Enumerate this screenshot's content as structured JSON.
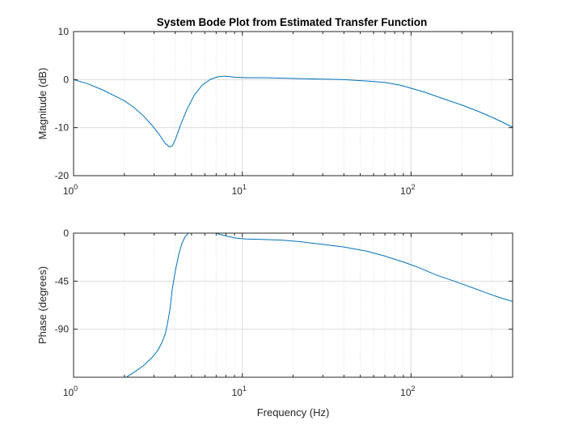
{
  "chart_data": [
    {
      "type": "line",
      "title": "System Bode Plot from Estimated Transfer Function",
      "xlabel": "",
      "ylabel": "Magnitude (dB)",
      "xscale": "log",
      "xlim": [
        1,
        400
      ],
      "ylim": [
        -20,
        10
      ],
      "yticks": [
        10,
        0,
        -10,
        -20
      ],
      "ytick_labels": [
        "10",
        "0",
        "-10",
        "-20"
      ],
      "xtick_labels": [
        {
          "base": "10",
          "exp": "0"
        },
        {
          "base": "10",
          "exp": "1"
        },
        {
          "base": "10",
          "exp": "2"
        }
      ],
      "grid": true,
      "color": "#0072BD",
      "x": [
        1,
        1.2,
        1.5,
        1.8,
        2,
        2.3,
        2.6,
        2.9,
        3.2,
        3.5,
        3.7,
        3.85,
        4,
        4.3,
        4.7,
        5.2,
        5.8,
        6.5,
        7.2,
        7.9,
        9,
        10.5,
        13,
        17,
        22,
        30,
        40,
        55,
        70,
        85,
        100,
        120,
        150,
        200,
        250,
        300,
        350,
        400
      ],
      "y": [
        0,
        -0.8,
        -2.2,
        -3.6,
        -4.4,
        -5.9,
        -7.6,
        -9.4,
        -11.3,
        -13.3,
        -14,
        -13.8,
        -12.6,
        -9.5,
        -6.2,
        -3.2,
        -1.1,
        0.1,
        0.6,
        0.7,
        0.5,
        0.4,
        0.4,
        0.3,
        0.2,
        0.1,
        0,
        -0.3,
        -0.6,
        -1.1,
        -1.8,
        -2.6,
        -3.8,
        -5.3,
        -6.6,
        -7.8,
        -8.9,
        -9.9
      ]
    },
    {
      "type": "line",
      "title": "",
      "xlabel": "Frequency (Hz)",
      "ylabel": "Phase (degrees)",
      "xscale": "log",
      "xlim": [
        1,
        400
      ],
      "ylim": [
        -135,
        0
      ],
      "yticks": [
        0,
        -45,
        -90
      ],
      "ytick_labels": [
        "0",
        "-45",
        "-90"
      ],
      "xtick_labels": [
        {
          "base": "10",
          "exp": "0"
        },
        {
          "base": "10",
          "exp": "1"
        },
        {
          "base": "10",
          "exp": "2"
        }
      ],
      "grid": true,
      "color": "#0072BD",
      "segments": [
        {
          "x": [
            2.05,
            2.3,
            2.6,
            2.9,
            3.15,
            3.35,
            3.5,
            3.6,
            3.72,
            3.85,
            4.0,
            4.2,
            4.4,
            4.6,
            4.8
          ],
          "y": [
            -135,
            -130,
            -124,
            -117,
            -110,
            -102,
            -94,
            -85,
            -72,
            -52,
            -36,
            -20,
            -9,
            -3,
            0
          ]
        },
        {
          "x": [
            7.0,
            7.5,
            8.2,
            9.2,
            10.5,
            13,
            17,
            22,
            30,
            40,
            55,
            70,
            90,
            110,
            140,
            180,
            230,
            280,
            330,
            400
          ],
          "y": [
            0,
            -1.5,
            -3,
            -4.6,
            -5.5,
            -5.9,
            -6.5,
            -8,
            -10.5,
            -13,
            -17,
            -21.5,
            -27,
            -32,
            -39,
            -45,
            -51,
            -56,
            -60,
            -64
          ]
        }
      ]
    }
  ]
}
